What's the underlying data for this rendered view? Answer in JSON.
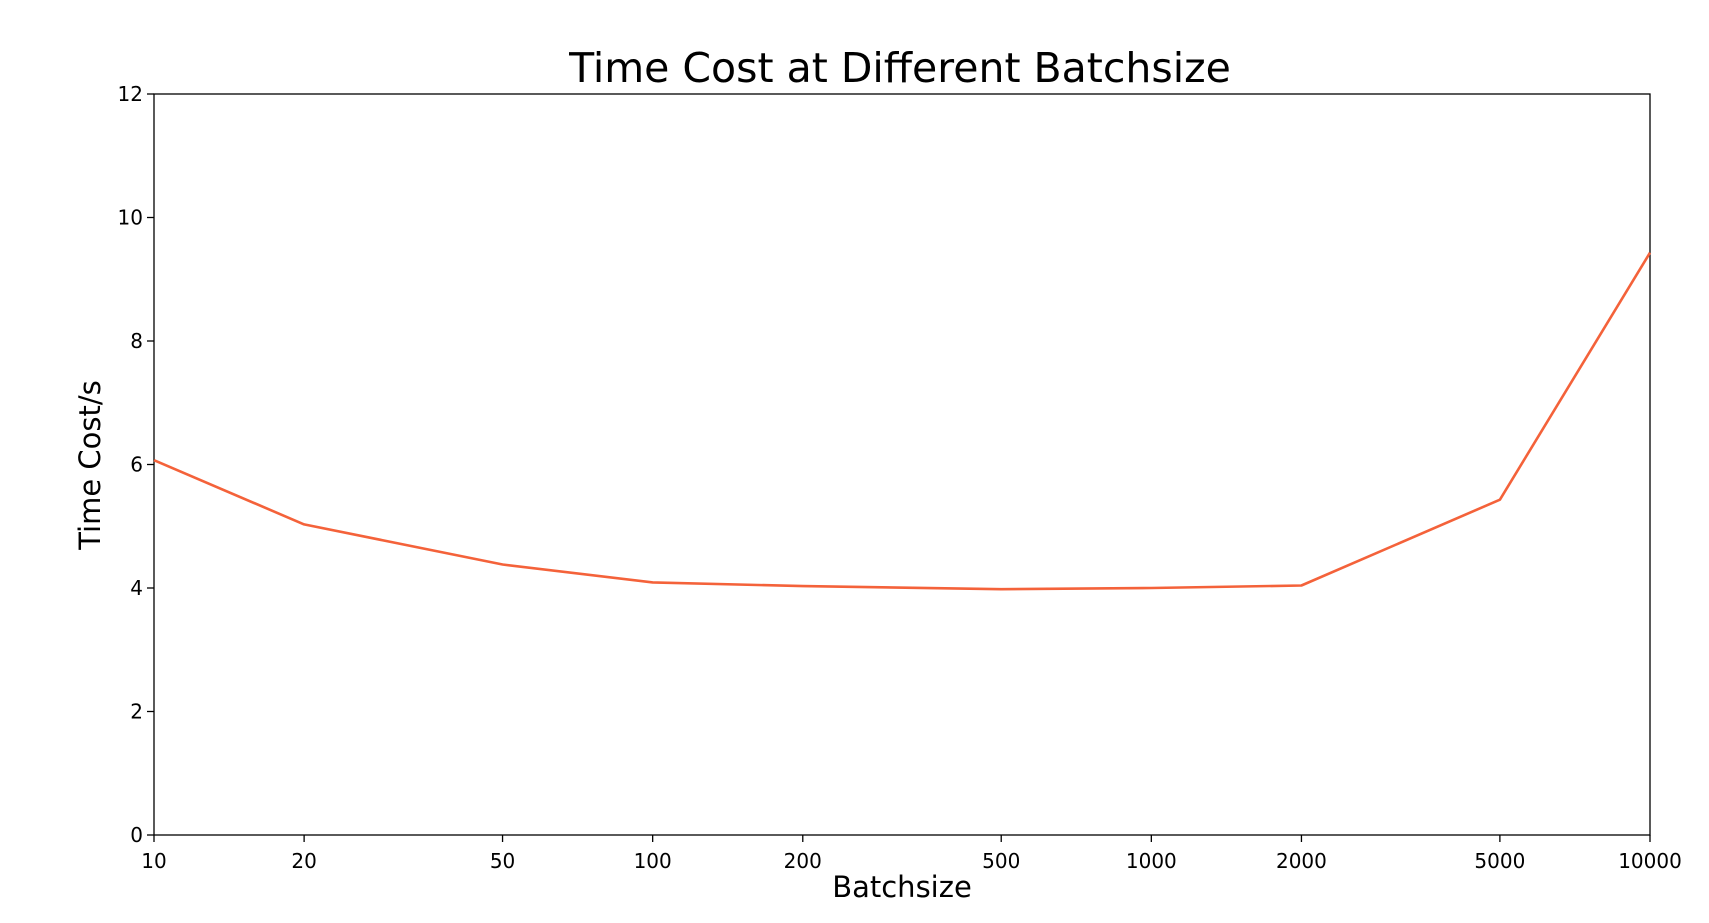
{
  "chart_data": {
    "type": "line",
    "title": "Time Cost at Different Batchsize",
    "xlabel": "Batchsize",
    "ylabel": "Time Cost/s",
    "x_scale": "categorical",
    "categories": [
      "10",
      "20",
      "50",
      "100",
      "200",
      "500",
      "1000",
      "2000",
      "5000",
      "10000"
    ],
    "y_ticks": [
      "0",
      "2",
      "4",
      "6",
      "8",
      "10",
      "12"
    ],
    "ylim": [
      0,
      12
    ],
    "grid": false,
    "series": [
      {
        "values": [
          6.07,
          5.03,
          4.38,
          4.09,
          4.03,
          3.98,
          4.0,
          4.04,
          5.43,
          9.43
        ],
        "color": "#f4623a"
      }
    ]
  }
}
